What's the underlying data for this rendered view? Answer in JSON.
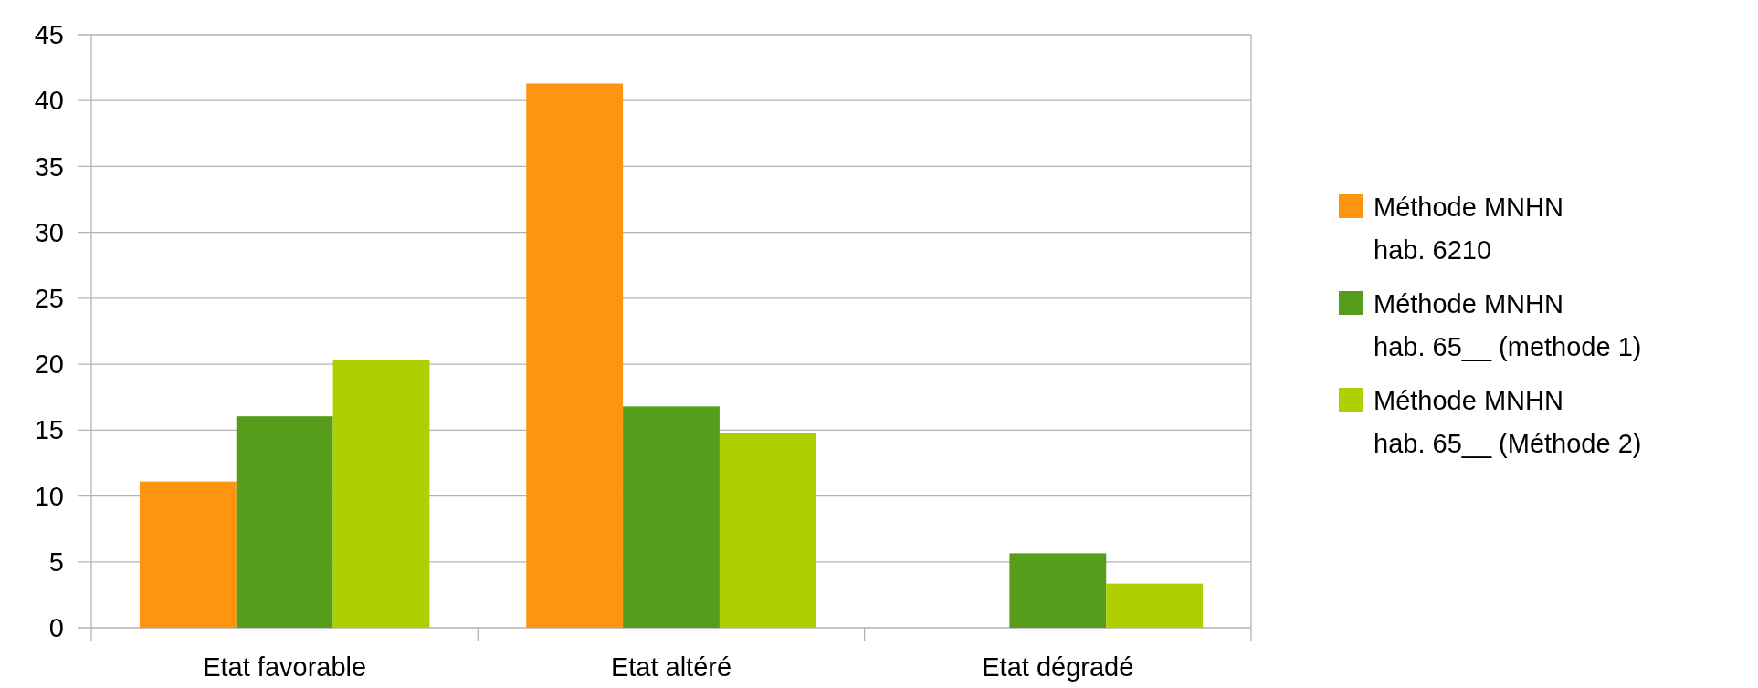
{
  "chart_data": {
    "type": "bar",
    "categories": [
      "Etat favorable",
      "Etat altéré",
      "Etat dégradé"
    ],
    "series": [
      {
        "name": "Méthode MNHN\nhab. 6210",
        "color": "#ff950e",
        "values": [
          11.1,
          41.3,
          0
        ]
      },
      {
        "name": "Méthode MNHN\nhab. 65__ (methode 1)",
        "color": "#579d1c",
        "values": [
          16.05,
          16.8,
          5.65
        ]
      },
      {
        "name": "Méthode MNHN\nhab. 65__ (Méthode 2)",
        "color": "#aecf00",
        "values": [
          20.3,
          14.8,
          3.35
        ]
      }
    ],
    "ylim": [
      0,
      45
    ],
    "yticks": [
      0,
      5,
      10,
      15,
      20,
      25,
      30,
      35,
      40,
      45
    ],
    "grid": "y",
    "legend": "right"
  }
}
